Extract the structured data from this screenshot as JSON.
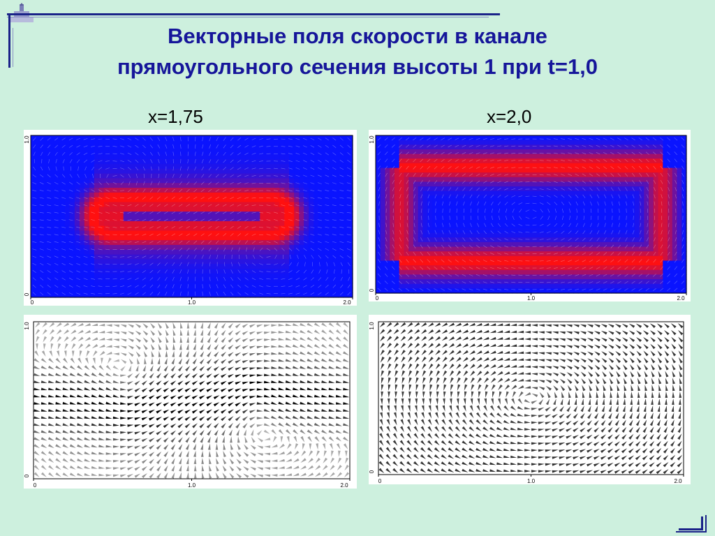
{
  "title_line1": "Векторные поля скорости в канале",
  "title_line2": "прямоугольного сечения высоты 1 при t=1,0",
  "labels": {
    "left": "x=1,75",
    "right": "x=2,0"
  },
  "colors": {
    "background": "#cdf0de",
    "title": "#16169a",
    "field_low": "#0a14ff",
    "field_high": "#ff1010"
  },
  "chart_data": [
    {
      "type": "heatmap",
      "label": "x=1,75",
      "field": "speed",
      "xlim": [
        0,
        2.0
      ],
      "ylim": [
        0,
        1.0
      ],
      "x_ticks": [
        "0",
        "1.0",
        "2.0"
      ],
      "y_ticks": [
        "0",
        "1.0"
      ],
      "pattern": "inner_core"
    },
    {
      "type": "heatmap",
      "label": "x=2,0",
      "field": "speed",
      "xlim": [
        0,
        2.0
      ],
      "ylim": [
        0,
        1.0
      ],
      "x_ticks": [
        "0",
        "1.0",
        "2.0"
      ],
      "y_ticks": [
        "0",
        "1.0"
      ],
      "pattern": "outer_ring"
    },
    {
      "type": "scatter",
      "label": "x=1,75",
      "field": "velocity_vectors",
      "xlim": [
        0,
        2.0
      ],
      "ylim": [
        0,
        1.0
      ],
      "x_ticks": [
        "0",
        "1.0",
        "2.0"
      ],
      "y_ticks": [
        "0",
        "1.0"
      ],
      "pattern": "double_vortex"
    },
    {
      "type": "scatter",
      "label": "x=2,0",
      "field": "velocity_vectors",
      "xlim": [
        0,
        2.0
      ],
      "ylim": [
        0,
        1.0
      ],
      "x_ticks": [
        "0",
        "1.0",
        "2.0"
      ],
      "y_ticks": [
        "0",
        "1.0"
      ],
      "pattern": "single_vortex"
    }
  ]
}
